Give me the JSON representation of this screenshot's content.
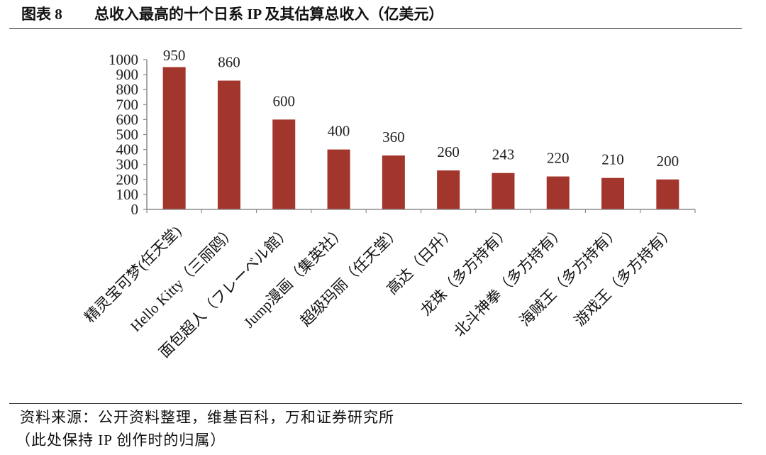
{
  "figure_label": "图表 8",
  "chart_data": {
    "type": "bar",
    "title": "总收入最高的十个日系 IP 及其估算总收入（亿美元）",
    "categories": [
      "精灵宝可梦(任天堂)",
      "Hello Kitty（三丽鸥）",
      "面包超人（フレーベル館）",
      "Jump漫画（集英社）",
      "超级玛丽（任天堂）",
      "高达（日升）",
      "龙珠（多方持有）",
      "北斗神拳（多方持有）",
      "海贼王（多方持有）",
      "游戏王（多方持有）"
    ],
    "values": [
      950,
      860,
      600,
      400,
      360,
      260,
      243,
      220,
      210,
      200
    ],
    "yticks": [
      0,
      100,
      200,
      300,
      400,
      500,
      600,
      700,
      800,
      900,
      1000
    ],
    "ylim": [
      0,
      1000
    ],
    "grid": false,
    "bar_color": "#a2352c"
  },
  "footer": {
    "source": "资料来源：公开资料整理，维基百科，万和证券研究所",
    "note": "（此处保持 IP 创作时的归属）"
  }
}
